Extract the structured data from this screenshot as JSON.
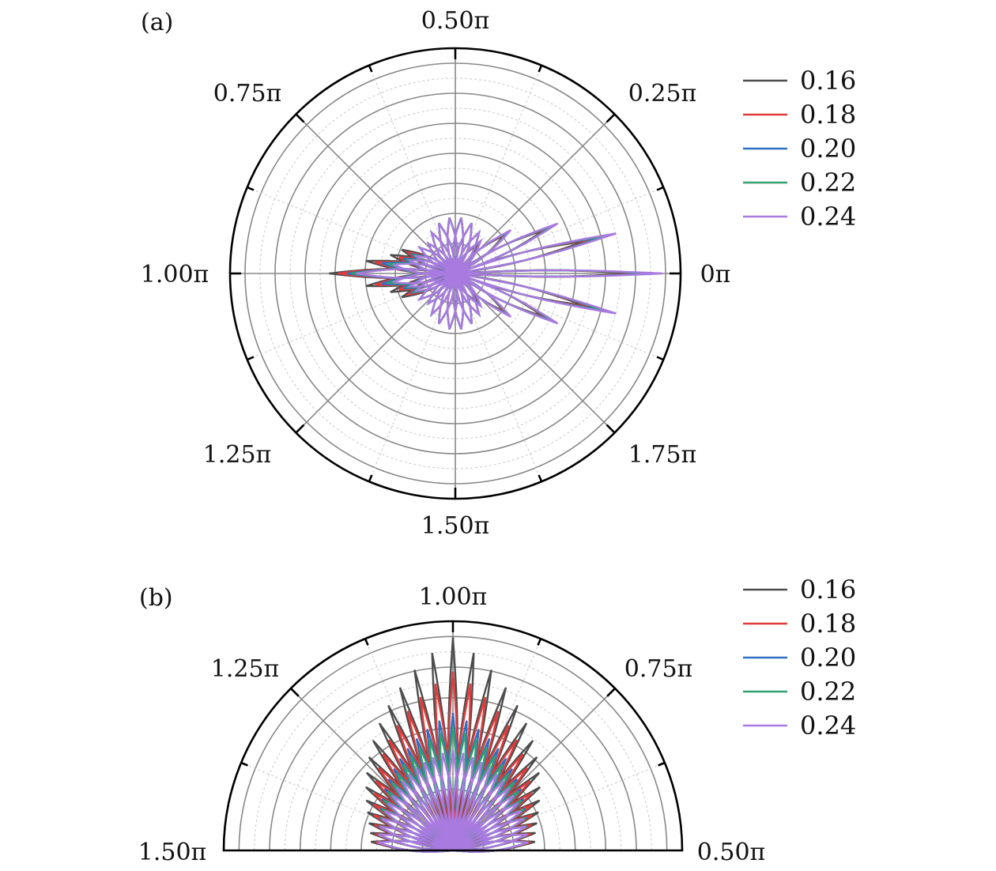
{
  "chart_data": [
    {
      "type": "polar",
      "panel_label": "(a)",
      "angle_range": "full",
      "angle_labels": [
        "0π",
        "0.25π",
        "0.50π",
        "0.75π",
        "1.00π",
        "1.25π",
        "1.50π",
        "1.75π"
      ],
      "radial_tick_labels": "none",
      "grid": true,
      "legend_placement": "right",
      "series": [
        {
          "name": "0.16",
          "color": "#4d4d4d",
          "main_lobe_radius": 0.8,
          "side_lobe_radii": [
            0.56,
            0.4,
            0.3,
            0.26
          ]
        },
        {
          "name": "0.18",
          "color": "#e03c3c",
          "main_lobe_radius": 0.84,
          "side_lobe_radii": [
            0.52,
            0.36,
            0.26,
            0.23
          ]
        },
        {
          "name": "0.20",
          "color": "#2e6fbf",
          "main_lobe_radius": 0.87,
          "side_lobe_radii": [
            0.48,
            0.33,
            0.24,
            0.21
          ]
        },
        {
          "name": "0.22",
          "color": "#33a070",
          "main_lobe_radius": 0.89,
          "side_lobe_radii": [
            0.46,
            0.3,
            0.22,
            0.2
          ]
        },
        {
          "name": "0.24",
          "color": "#a97ae0",
          "main_lobe_radius": 0.92,
          "side_lobe_radii": [
            0.44,
            0.28,
            0.21,
            0.19
          ]
        }
      ]
    },
    {
      "type": "polar",
      "panel_label": "(b)",
      "angle_range": "half",
      "angle_labels": [
        "0.50π",
        "0.75π",
        "1.00π",
        "1.25π",
        "1.50π"
      ],
      "radial_tick_labels": "none",
      "grid": true,
      "legend_placement": "right",
      "series": [
        {
          "name": "0.16",
          "color": "#4d4d4d",
          "center_lobe_radius": 0.93,
          "outer_lobe_radius": 0.36
        },
        {
          "name": "0.18",
          "color": "#e03c3c",
          "center_lobe_radius": 0.78,
          "outer_lobe_radius": 0.34
        },
        {
          "name": "0.20",
          "color": "#2e6fbf",
          "center_lobe_radius": 0.6,
          "outer_lobe_radius": 0.33
        },
        {
          "name": "0.22",
          "color": "#33a070",
          "center_lobe_radius": 0.54,
          "outer_lobe_radius": 0.33
        },
        {
          "name": "0.24",
          "color": "#a97ae0",
          "center_lobe_radius": 0.44,
          "outer_lobe_radius": 0.33
        }
      ]
    }
  ]
}
